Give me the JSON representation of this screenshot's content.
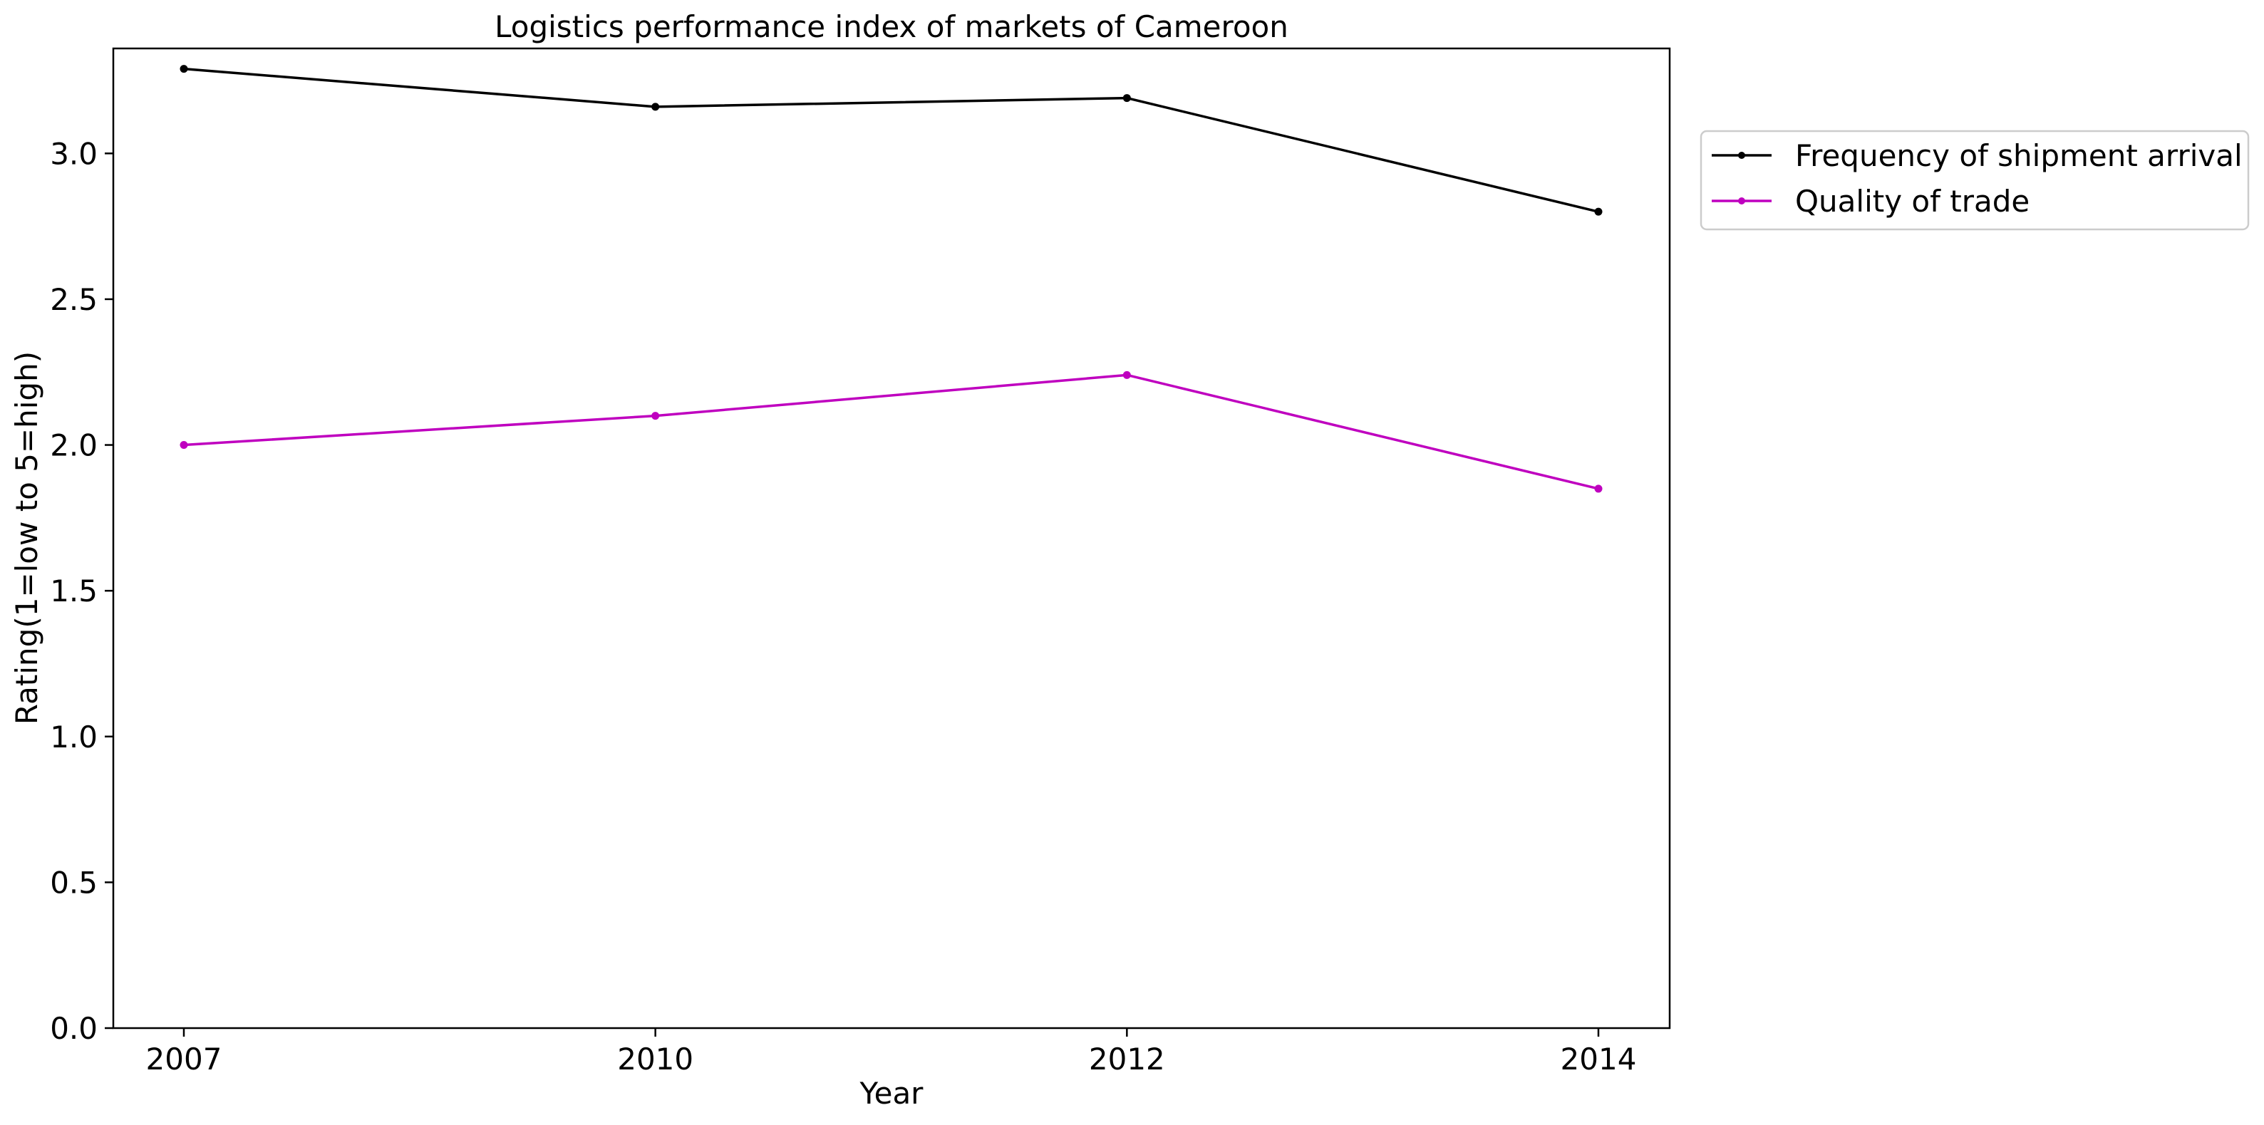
{
  "chart_data": {
    "type": "line",
    "title": "Logistics performance index of markets of Cameroon",
    "xlabel": "Year",
    "ylabel": "Rating(1=low to 5=high)",
    "categories": [
      "2007",
      "2010",
      "2012",
      "2014"
    ],
    "ylim": [
      0,
      3.36
    ],
    "yticks": [
      0.0,
      0.5,
      1.0,
      1.5,
      2.0,
      2.5,
      3.0
    ],
    "ytick_labels": [
      "0.0",
      "0.5",
      "1.0",
      "1.5",
      "2.0",
      "2.5",
      "3.0"
    ],
    "grid": false,
    "legend_position": "outside-top-right",
    "series": [
      {
        "name": "Frequency of shipment arrival",
        "color": "#000000",
        "values": [
          3.29,
          3.16,
          3.19,
          2.8
        ]
      },
      {
        "name": "Quality of trade",
        "color": "#bf00bf",
        "values": [
          2.0,
          2.1,
          2.24,
          1.85
        ]
      }
    ]
  }
}
